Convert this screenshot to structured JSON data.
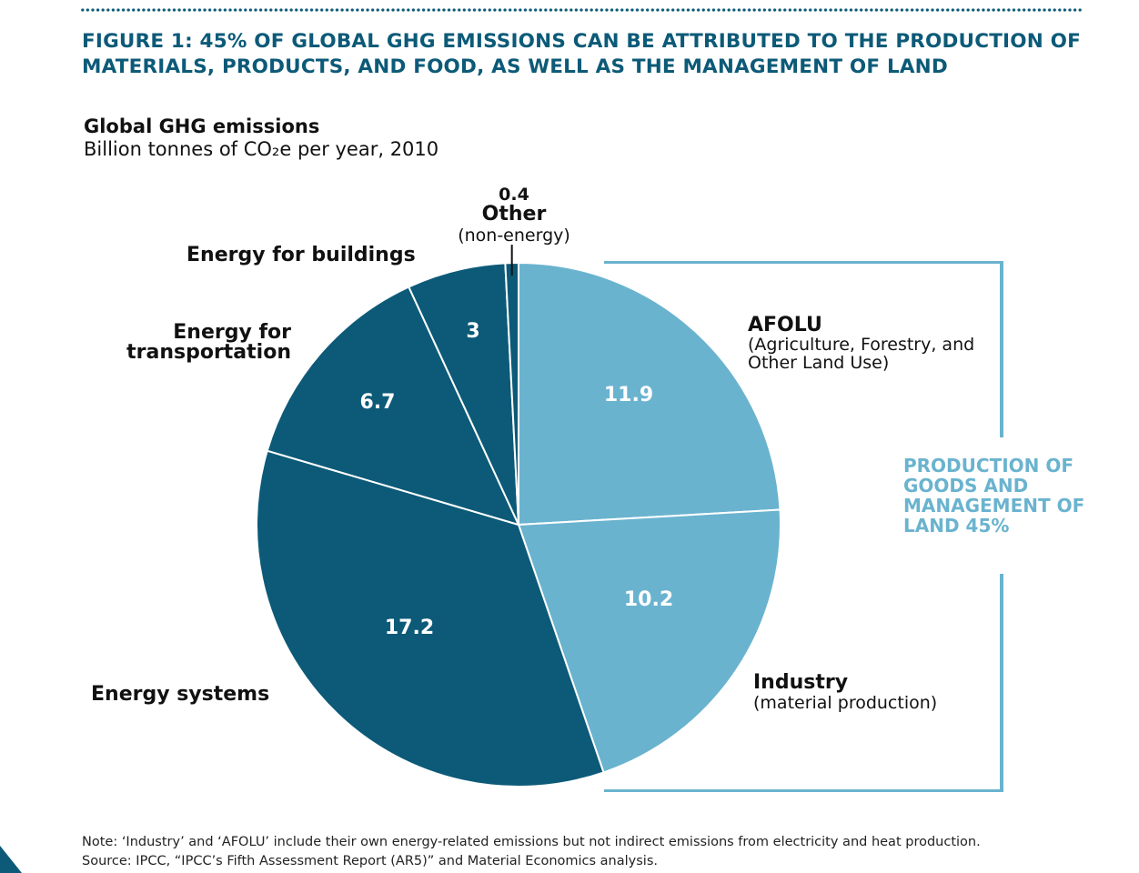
{
  "figure_title": "FIGURE 1: 45% OF GLOBAL GHG EMISSIONS CAN BE ATTRIBUTED TO THE PRODUCTION OF MATERIALS, PRODUCTS, AND FOOD, AS WELL AS THE MANAGEMENT OF LAND",
  "chart_data": {
    "type": "pie",
    "title": "Global GHG emissions",
    "subtitle": "Billion tonnes of CO₂e per year, 2010",
    "slices": [
      {
        "label": "AFOLU",
        "sublabel": "(Agriculture, Forestry, and Other Land Use)",
        "value": 11.9,
        "color": "#6ab3cf"
      },
      {
        "label": "Industry",
        "sublabel": "(material production)",
        "value": 10.2,
        "color": "#6ab3cf"
      },
      {
        "label": "Energy systems",
        "sublabel": "",
        "value": 17.2,
        "color": "#0c5a78"
      },
      {
        "label": "Energy for transportation",
        "sublabel": "",
        "value": 6.7,
        "color": "#0c5a78"
      },
      {
        "label": "Energy for buildings",
        "sublabel": "",
        "value": 3,
        "color": "#0c5a78"
      },
      {
        "label": "Other",
        "sublabel": "(non-energy)",
        "value": 0.4,
        "color": "#0c5a78"
      }
    ],
    "group_annotation": "PRODUCTION OF GOODS AND MANAGEMENT OF LAND 45%",
    "value_labels": [
      "11.9",
      "10.2",
      "17.2",
      "6.7",
      "3",
      "0.4"
    ]
  },
  "labels": {
    "afolu_title": "AFOLU",
    "afolu_sub": "(Agriculture, Forestry, and Other Land Use)",
    "industry_title": "Industry",
    "industry_sub": "(material production)",
    "energy_systems": "Energy systems",
    "transport_line1": "Energy for",
    "transport_line2": "transportation",
    "buildings": "Energy for buildings",
    "other_value": "0.4",
    "other_title": "Other",
    "other_sub": "(non-energy)"
  },
  "note": "Note: ‘Industry’ and ‘AFOLU’ include their own energy-related emissions but not indirect emissions from electricity and heat production.",
  "source": "Source: IPCC, “IPCC’s Fifth Assessment Report (AR5)” and Material Economics analysis.",
  "colors": {
    "dark_teal": "#0c5a78",
    "light_blue": "#6ab3cf"
  }
}
